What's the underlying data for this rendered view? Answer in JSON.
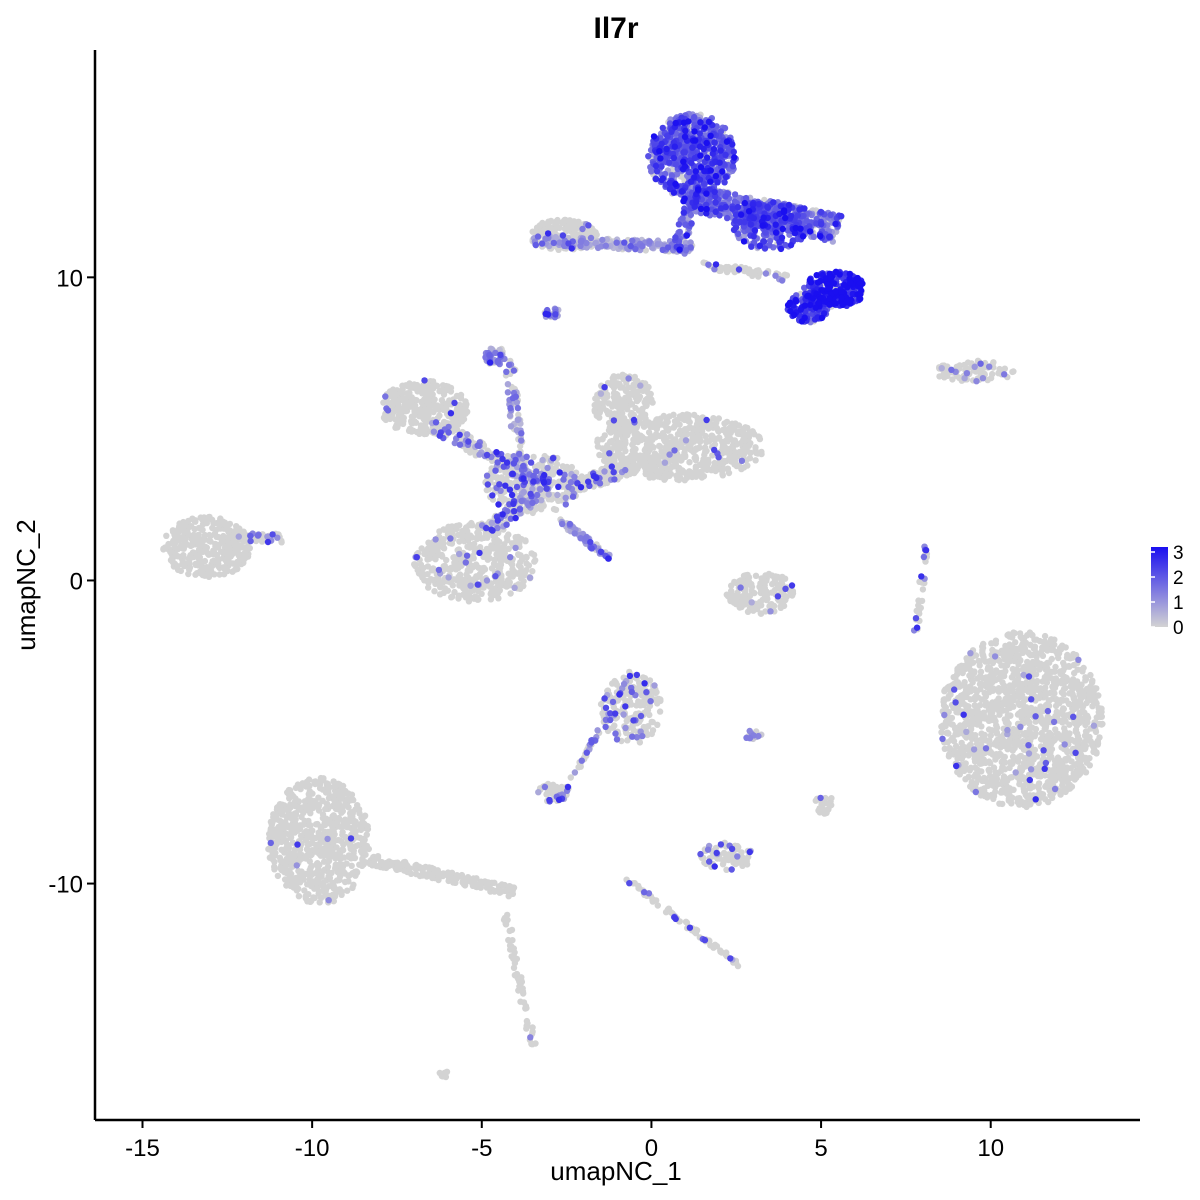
{
  "chart_data": {
    "type": "scatter",
    "title": "Il7r",
    "xlabel": "umapNC_1",
    "ylabel": "umapNC_2",
    "xlim": [
      -16.4,
      14.4
    ],
    "ylim": [
      -17.8,
      17.5
    ],
    "x_ticks": [
      -15,
      -10,
      -5,
      0,
      5,
      10
    ],
    "x_tick_labels": [
      "-15",
      "-10",
      "-5",
      "0",
      "5",
      "10"
    ],
    "y_ticks": [
      -10,
      0,
      10
    ],
    "y_tick_labels": [
      "-10",
      "0",
      "10"
    ],
    "grid": false,
    "legend": {
      "placement": "right",
      "type": "continuous-colorbar",
      "range": [
        0,
        3.2
      ],
      "ticks": [
        0,
        1,
        2,
        3
      ],
      "tick_labels": [
        "0",
        "1",
        "2",
        "3"
      ],
      "color_low": "#d3d3d3",
      "color_high": "#1a0ff0"
    },
    "clusters": [
      {
        "id": "c-top-tcell",
        "shape": "ellipse",
        "cx": 1.2,
        "cy": 14.0,
        "rx": 1.3,
        "ry": 1.4,
        "n": 700,
        "expr": 1.9
      },
      {
        "id": "c-top-tcell-arm",
        "shape": "line",
        "x1": 1.2,
        "y1": 12.6,
        "x2": 5.5,
        "y2": 11.6,
        "width": 0.9,
        "n": 500,
        "expr": 1.6
      },
      {
        "id": "c-top-tcell-lower",
        "shape": "ellipse",
        "cx": 3.5,
        "cy": 11.7,
        "rx": 1.1,
        "ry": 0.8,
        "n": 250,
        "expr": 2.0
      },
      {
        "id": "c-top-high",
        "shape": "ellipse",
        "cx": 5.4,
        "cy": 9.6,
        "rx": 0.9,
        "ry": 0.6,
        "n": 280,
        "expr": 2.9
      },
      {
        "id": "c-top-high2",
        "shape": "ellipse",
        "cx": 4.6,
        "cy": 9.0,
        "rx": 0.6,
        "ry": 0.5,
        "n": 130,
        "expr": 2.4
      },
      {
        "id": "c-top-stem",
        "shape": "line",
        "x1": 1.2,
        "y1": 12.8,
        "x2": 0.8,
        "y2": 10.8,
        "width": 0.4,
        "n": 80,
        "expr": 1.6
      },
      {
        "id": "c-top-tail",
        "shape": "line",
        "x1": -3.5,
        "y1": 11.2,
        "x2": 1.2,
        "y2": 11.0,
        "width": 0.35,
        "n": 200,
        "expr": 0.7
      },
      {
        "id": "c-top-left-blob",
        "shape": "ellipse",
        "cx": -2.6,
        "cy": 11.4,
        "rx": 1.0,
        "ry": 0.5,
        "n": 200,
        "expr": 0.05
      },
      {
        "id": "c-top-right-line",
        "shape": "line",
        "x1": 1.5,
        "y1": 10.4,
        "x2": 4.0,
        "y2": 10.0,
        "width": 0.25,
        "n": 60,
        "expr": 0.3
      },
      {
        "id": "c-small-mid",
        "shape": "ellipse",
        "cx": -2.9,
        "cy": 8.8,
        "rx": 0.25,
        "ry": 0.2,
        "n": 20,
        "expr": 1.2
      },
      {
        "id": "c-myeloid-left",
        "shape": "ellipse",
        "cx": -6.7,
        "cy": 5.7,
        "rx": 1.3,
        "ry": 0.9,
        "n": 300,
        "expr": 0.05
      },
      {
        "id": "c-myeloid-right",
        "shape": "ellipse",
        "cx": 0.8,
        "cy": 4.4,
        "rx": 2.5,
        "ry": 1.1,
        "n": 600,
        "expr": 0.04
      },
      {
        "id": "c-myeloid-right-top",
        "shape": "ellipse",
        "cx": -0.8,
        "cy": 5.8,
        "rx": 0.9,
        "ry": 1.0,
        "n": 200,
        "expr": 0.04
      },
      {
        "id": "c-myeloid-bottom",
        "shape": "ellipse",
        "cx": -5.2,
        "cy": 0.6,
        "rx": 1.8,
        "ry": 1.3,
        "n": 450,
        "expr": 0.08
      },
      {
        "id": "c-myeloid-center",
        "shape": "ellipse",
        "cx": -3.5,
        "cy": 3.2,
        "rx": 1.4,
        "ry": 1.0,
        "n": 300,
        "expr": 0.4
      },
      {
        "id": "c-myeloid-arm1",
        "shape": "line",
        "x1": -4.2,
        "y1": 7.4,
        "x2": -3.8,
        "y2": 3.0,
        "width": 0.3,
        "n": 80,
        "expr": 0.6
      },
      {
        "id": "c-myeloid-arm2",
        "shape": "line",
        "x1": -2.7,
        "y1": 2.0,
        "x2": -1.2,
        "y2": 0.7,
        "width": 0.2,
        "n": 60,
        "expr": 1.1
      },
      {
        "id": "c-myeloid-arm3",
        "shape": "line",
        "x1": -6.5,
        "y1": 5.2,
        "x2": -3.5,
        "y2": 3.4,
        "width": 0.5,
        "n": 150,
        "expr": 0.5
      },
      {
        "id": "c-myeloid-arm4",
        "shape": "line",
        "x1": -4.8,
        "y1": 1.6,
        "x2": -3.0,
        "y2": 3.4,
        "width": 0.5,
        "n": 150,
        "expr": 0.5
      },
      {
        "id": "c-myeloid-arm5",
        "shape": "line",
        "x1": -2.5,
        "y1": 3.0,
        "x2": -0.5,
        "y2": 3.8,
        "width": 0.5,
        "n": 150,
        "expr": 0.2
      },
      {
        "id": "c-myeloid-top-dot",
        "shape": "ellipse",
        "cx": -4.6,
        "cy": 7.4,
        "rx": 0.3,
        "ry": 0.3,
        "n": 40,
        "expr": 1.3
      },
      {
        "id": "c-far-left",
        "shape": "ellipse",
        "cx": -13.1,
        "cy": 1.1,
        "rx": 1.3,
        "ry": 1.0,
        "n": 350,
        "expr": 0.03
      },
      {
        "id": "c-far-left-arm",
        "shape": "line",
        "x1": -12.5,
        "y1": 1.4,
        "x2": -10.8,
        "y2": 1.4,
        "width": 0.3,
        "n": 50,
        "expr": 0.4
      },
      {
        "id": "c-center-small",
        "shape": "ellipse",
        "cx": 3.2,
        "cy": -0.4,
        "rx": 1.0,
        "ry": 0.7,
        "n": 150,
        "expr": 0.05
      },
      {
        "id": "c-vertical-right",
        "shape": "line",
        "x1": 8.1,
        "y1": 1.2,
        "x2": 7.8,
        "y2": -1.8,
        "width": 0.15,
        "n": 30,
        "expr": 0.5
      },
      {
        "id": "c-big-right",
        "shape": "ellipse",
        "cx": 10.9,
        "cy": -4.6,
        "rx": 2.4,
        "ry": 2.9,
        "n": 1400,
        "expr": 0.04
      },
      {
        "id": "c-top-right-small",
        "shape": "ellipse",
        "cx": 9.5,
        "cy": 6.9,
        "rx": 1.2,
        "ry": 0.35,
        "n": 90,
        "expr": 0.2
      },
      {
        "id": "c-mid-cluster",
        "shape": "ellipse",
        "cx": -0.6,
        "cy": -4.2,
        "rx": 0.9,
        "ry": 1.2,
        "n": 200,
        "expr": 0.3
      },
      {
        "id": "c-mid-arm",
        "shape": "line",
        "x1": -1.3,
        "y1": -4.5,
        "x2": -2.6,
        "y2": -7.1,
        "width": 0.15,
        "n": 40,
        "expr": 0.5
      },
      {
        "id": "c-mid-small",
        "shape": "ellipse",
        "cx": -2.9,
        "cy": -7.0,
        "rx": 0.5,
        "ry": 0.3,
        "n": 40,
        "expr": 0.4
      },
      {
        "id": "c-bottom-left",
        "shape": "ellipse",
        "cx": -9.8,
        "cy": -8.6,
        "rx": 1.5,
        "ry": 2.1,
        "n": 700,
        "expr": 0.02
      },
      {
        "id": "c-bottom-left-arm",
        "shape": "line",
        "x1": -8.3,
        "y1": -9.2,
        "x2": -4.0,
        "y2": -10.3,
        "width": 0.35,
        "n": 180,
        "expr": 0.02
      },
      {
        "id": "c-bottom-left-tail",
        "shape": "line",
        "x1": -4.3,
        "y1": -11.0,
        "x2": -3.5,
        "y2": -15.3,
        "width": 0.2,
        "n": 60,
        "expr": 0.02
      },
      {
        "id": "c-bottom-center",
        "shape": "ellipse",
        "cx": 2.2,
        "cy": -9.1,
        "rx": 0.8,
        "ry": 0.45,
        "n": 70,
        "expr": 0.4
      },
      {
        "id": "c-bottom-line",
        "shape": "line",
        "x1": -0.8,
        "y1": -9.8,
        "x2": 2.6,
        "y2": -12.7,
        "width": 0.15,
        "n": 70,
        "expr": 0.15
      },
      {
        "id": "c-mid-right-small",
        "shape": "ellipse",
        "cx": 3.0,
        "cy": -5.1,
        "rx": 0.3,
        "ry": 0.15,
        "n": 12,
        "expr": 0.8
      },
      {
        "id": "c-mid-right-small2",
        "shape": "ellipse",
        "cx": 5.1,
        "cy": -7.4,
        "rx": 0.3,
        "ry": 0.3,
        "n": 20,
        "expr": 0.1
      },
      {
        "id": "c-far-bottom",
        "shape": "ellipse",
        "cx": -6.1,
        "cy": -16.3,
        "rx": 0.2,
        "ry": 0.1,
        "n": 10,
        "expr": 0.0
      }
    ]
  }
}
